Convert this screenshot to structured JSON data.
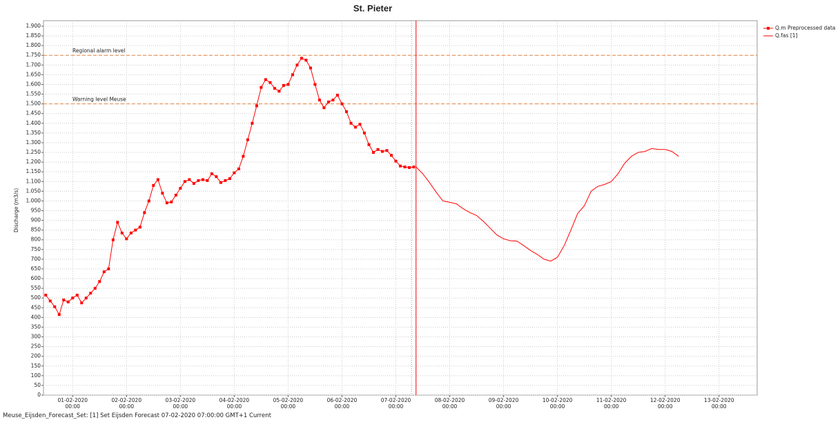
{
  "chart_data": {
    "type": "line",
    "title": "St. Pieter",
    "y_label": "Discharge (m3/s)",
    "footer": "Meuse_Eijsden_Forecast_Set: [1] Set Eijsden Forecast 07-02-2020 07:00:00 GMT+1 Current",
    "xlim": [
      "2020-01-31 11:00",
      "2020-02-13 17:00"
    ],
    "xticks": [
      {
        "value": "2020-02-01 00:00",
        "label": "01-02-2020\n00:00"
      },
      {
        "value": "2020-02-02 00:00",
        "label": "02-02-2020\n00:00"
      },
      {
        "value": "2020-02-03 00:00",
        "label": "03-02-2020\n00:00"
      },
      {
        "value": "2020-02-04 00:00",
        "label": "04-02-2020\n00:00"
      },
      {
        "value": "2020-02-05 00:00",
        "label": "05-02-2020\n00:00"
      },
      {
        "value": "2020-02-06 00:00",
        "label": "06-02-2020\n00:00"
      },
      {
        "value": "2020-02-07 00:00",
        "label": "07-02-2020\n00:00"
      },
      {
        "value": "2020-02-08 00:00",
        "label": "08-02-2020\n00:00"
      },
      {
        "value": "2020-02-09 00:00",
        "label": "09-02-2020\n00:00"
      },
      {
        "value": "2020-02-10 00:00",
        "label": "10-02-2020\n00:00"
      },
      {
        "value": "2020-02-11 00:00",
        "label": "11-02-2020\n00:00"
      },
      {
        "value": "2020-02-12 00:00",
        "label": "12-02-2020\n00:00"
      },
      {
        "value": "2020-02-13 00:00",
        "label": "13-02-2020\n00:00"
      }
    ],
    "ylim": [
      0,
      1900
    ],
    "yticks": [
      0,
      50,
      100,
      150,
      200,
      250,
      300,
      350,
      400,
      450,
      500,
      550,
      600,
      650,
      700,
      750,
      800,
      850,
      900,
      950,
      {
        "value": 1000,
        "label": "1.000"
      },
      {
        "value": 1050,
        "label": "1.050"
      },
      {
        "value": 1100,
        "label": "1.100"
      },
      {
        "value": 1150,
        "label": "1.150"
      },
      {
        "value": 1200,
        "label": "1.200"
      },
      {
        "value": 1250,
        "label": "1.250"
      },
      {
        "value": 1300,
        "label": "1.300"
      },
      {
        "value": 1350,
        "label": "1.350"
      },
      {
        "value": 1400,
        "label": "1.400"
      },
      {
        "value": 1450,
        "label": "1.450"
      },
      {
        "value": 1500,
        "label": "1.500"
      },
      {
        "value": 1550,
        "label": "1.550"
      },
      {
        "value": 1600,
        "label": "1.600"
      },
      {
        "value": 1650,
        "label": "1.650"
      },
      {
        "value": 1700,
        "label": "1.700"
      },
      {
        "value": 1750,
        "label": "1.750"
      },
      {
        "value": 1800,
        "label": "1.800"
      },
      {
        "value": 1850,
        "label": "1.850"
      },
      {
        "value": 1900,
        "label": "1.900"
      }
    ],
    "grid": true,
    "legend": "outside-top-right",
    "thresholds": [
      {
        "label": "Regional alarm level",
        "value": 1750,
        "color": "#e8843c"
      },
      {
        "label": "Warning level Meuse",
        "value": 1500,
        "color": "#e8843c"
      }
    ],
    "vlines": [
      {
        "x": "2020-02-07 07:00",
        "color": "#999999",
        "style": "dotted"
      },
      {
        "x": "2020-02-07 09:00",
        "color": "#ff0000",
        "style": "solid"
      }
    ],
    "series": [
      {
        "name": "Q.m Preprocessed data",
        "color": "#ff0000",
        "markers": true,
        "x": [
          "2020-01-31 12:00",
          "2020-01-31 14:00",
          "2020-01-31 16:00",
          "2020-01-31 18:00",
          "2020-01-31 20:00",
          "2020-01-31 22:00",
          "2020-02-01 00:00",
          "2020-02-01 02:00",
          "2020-02-01 04:00",
          "2020-02-01 06:00",
          "2020-02-01 08:00",
          "2020-02-01 10:00",
          "2020-02-01 12:00",
          "2020-02-01 14:00",
          "2020-02-01 16:00",
          "2020-02-01 18:00",
          "2020-02-01 20:00",
          "2020-02-01 22:00",
          "2020-02-02 00:00",
          "2020-02-02 02:00",
          "2020-02-02 04:00",
          "2020-02-02 06:00",
          "2020-02-02 08:00",
          "2020-02-02 10:00",
          "2020-02-02 12:00",
          "2020-02-02 14:00",
          "2020-02-02 16:00",
          "2020-02-02 18:00",
          "2020-02-02 20:00",
          "2020-02-02 22:00",
          "2020-02-03 00:00",
          "2020-02-03 02:00",
          "2020-02-03 04:00",
          "2020-02-03 06:00",
          "2020-02-03 08:00",
          "2020-02-03 10:00",
          "2020-02-03 12:00",
          "2020-02-03 14:00",
          "2020-02-03 16:00",
          "2020-02-03 18:00",
          "2020-02-03 20:00",
          "2020-02-03 22:00",
          "2020-02-04 00:00",
          "2020-02-04 02:00",
          "2020-02-04 04:00",
          "2020-02-04 06:00",
          "2020-02-04 08:00",
          "2020-02-04 10:00",
          "2020-02-04 12:00",
          "2020-02-04 14:00",
          "2020-02-04 16:00",
          "2020-02-04 18:00",
          "2020-02-04 20:00",
          "2020-02-04 22:00",
          "2020-02-05 00:00",
          "2020-02-05 02:00",
          "2020-02-05 04:00",
          "2020-02-05 06:00",
          "2020-02-05 08:00",
          "2020-02-05 10:00",
          "2020-02-05 12:00",
          "2020-02-05 14:00",
          "2020-02-05 16:00",
          "2020-02-05 18:00",
          "2020-02-05 20:00",
          "2020-02-05 22:00",
          "2020-02-06 00:00",
          "2020-02-06 02:00",
          "2020-02-06 04:00",
          "2020-02-06 06:00",
          "2020-02-06 08:00",
          "2020-02-06 10:00",
          "2020-02-06 12:00",
          "2020-02-06 14:00",
          "2020-02-06 16:00",
          "2020-02-06 18:00",
          "2020-02-06 20:00",
          "2020-02-06 22:00",
          "2020-02-07 00:00",
          "2020-02-07 02:00",
          "2020-02-07 04:00",
          "2020-02-07 06:00",
          "2020-02-07 08:00"
        ],
        "values": [
          515,
          485,
          455,
          415,
          490,
          480,
          500,
          515,
          475,
          500,
          525,
          550,
          585,
          635,
          650,
          800,
          890,
          835,
          805,
          835,
          850,
          865,
          940,
          1000,
          1080,
          1110,
          1040,
          990,
          995,
          1030,
          1065,
          1100,
          1110,
          1090,
          1105,
          1110,
          1105,
          1140,
          1125,
          1095,
          1105,
          1115,
          1145,
          1165,
          1230,
          1315,
          1400,
          1490,
          1585,
          1625,
          1610,
          1580,
          1565,
          1595,
          1600,
          1650,
          1700,
          1735,
          1725,
          1685,
          1600,
          1520,
          1480,
          1510,
          1520,
          1545,
          1500,
          1460,
          1400,
          1380,
          1395,
          1350,
          1290,
          1250,
          1265,
          1255,
          1260,
          1235,
          1205,
          1180,
          1175,
          1172,
          1175
        ]
      },
      {
        "name": "Q.fas [1]",
        "color": "#ff0000",
        "markers": false,
        "x": [
          "2020-02-07 09:00",
          "2020-02-07 12:00",
          "2020-02-07 15:00",
          "2020-02-07 18:00",
          "2020-02-07 21:00",
          "2020-02-08 00:00",
          "2020-02-08 03:00",
          "2020-02-08 06:00",
          "2020-02-08 09:00",
          "2020-02-08 12:00",
          "2020-02-08 15:00",
          "2020-02-08 18:00",
          "2020-02-08 21:00",
          "2020-02-09 00:00",
          "2020-02-09 03:00",
          "2020-02-09 06:00",
          "2020-02-09 09:00",
          "2020-02-09 12:00",
          "2020-02-09 15:00",
          "2020-02-09 18:00",
          "2020-02-09 21:00",
          "2020-02-10 00:00",
          "2020-02-10 03:00",
          "2020-02-10 06:00",
          "2020-02-10 09:00",
          "2020-02-10 12:00",
          "2020-02-10 15:00",
          "2020-02-10 18:00",
          "2020-02-10 21:00",
          "2020-02-11 00:00",
          "2020-02-11 03:00",
          "2020-02-11 06:00",
          "2020-02-11 09:00",
          "2020-02-11 12:00",
          "2020-02-11 15:00",
          "2020-02-11 18:00",
          "2020-02-11 21:00",
          "2020-02-12 00:00",
          "2020-02-12 03:00",
          "2020-02-12 06:00"
        ],
        "values": [
          1175,
          1140,
          1095,
          1045,
          1000,
          993,
          985,
          960,
          940,
          925,
          895,
          860,
          825,
          805,
          795,
          793,
          770,
          745,
          725,
          700,
          690,
          710,
          770,
          850,
          935,
          975,
          1050,
          1075,
          1085,
          1100,
          1140,
          1195,
          1230,
          1250,
          1255,
          1270,
          1265,
          1265,
          1255,
          1230
        ]
      }
    ]
  }
}
